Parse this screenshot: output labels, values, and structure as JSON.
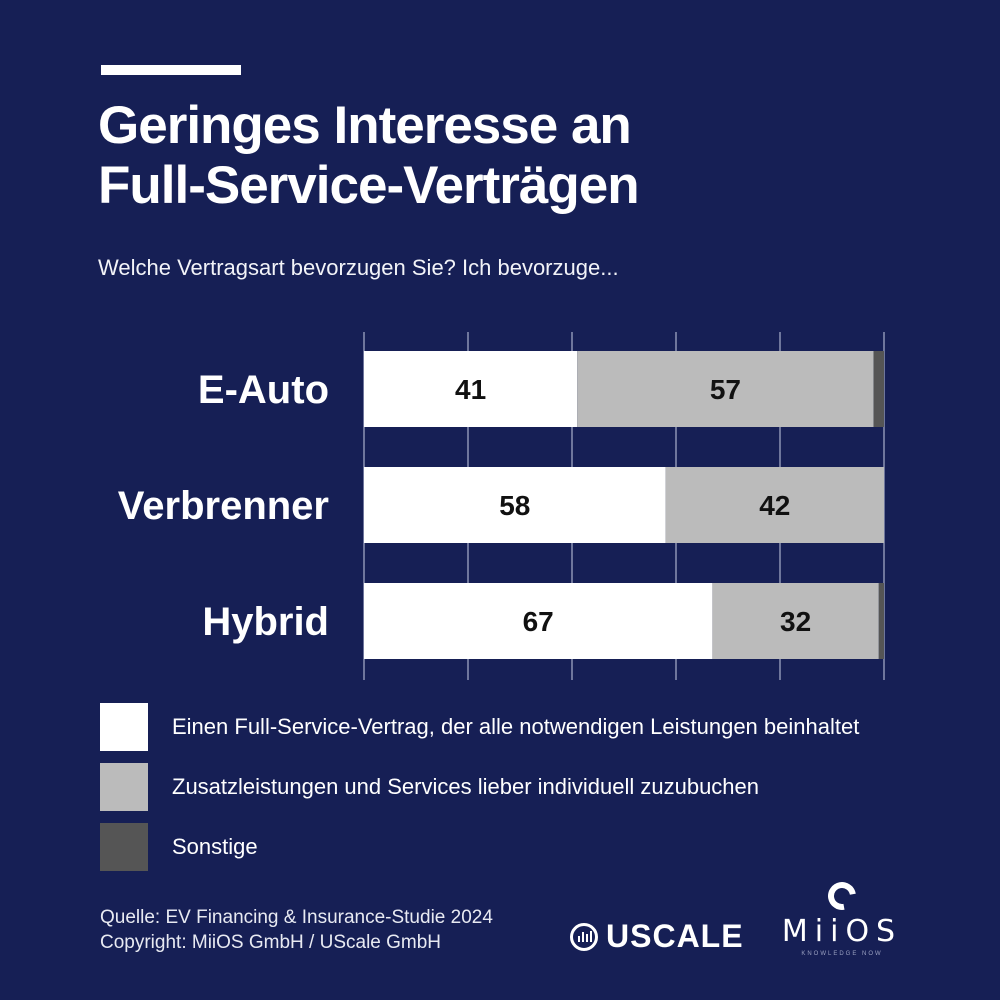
{
  "title_lines": [
    "Geringes Interesse an",
    "Full-Service-Verträgen"
  ],
  "subtitle": "Welche Vertragsart bevorzugen Sie? Ich bevorzuge...",
  "colors": {
    "background": "#161f55",
    "full_service": "#ffffff",
    "individual": "#bbbbbb",
    "other": "#555555"
  },
  "chart_data": {
    "type": "bar",
    "orientation": "horizontal",
    "stacked": true,
    "title": "Geringes Interesse an Full-Service-Verträgen",
    "categories": [
      "E-Auto",
      "Verbrenner",
      "Hybrid"
    ],
    "series": [
      {
        "name": "Einen Full-Service-Vertrag, der alle notwendigen Leistungen beinhaltet",
        "values": [
          41,
          58,
          67
        ]
      },
      {
        "name": "Zusatzleistungen und Services lieber individuell zuzubuchen",
        "values": [
          57,
          42,
          32
        ]
      },
      {
        "name": "Sonstige",
        "values": [
          2,
          0,
          1
        ]
      }
    ],
    "xlim": [
      0,
      100
    ],
    "grid": true,
    "xlabel": "",
    "ylabel": "",
    "unit": "%"
  },
  "legend": [
    {
      "label": "Einen Full-Service-Vertrag, der alle notwendigen Leistungen beinhaltet"
    },
    {
      "label": "Zusatzleistungen und Services lieber individuell zuzubuchen"
    },
    {
      "label": "Sonstige"
    }
  ],
  "source": {
    "line1": "Quelle: EV Financing & Insurance-Studie 2024",
    "line2": "Copyright: MiiOS GmbH / UScale GmbH"
  },
  "logos": {
    "uscale": "USCALE",
    "miios": "MiiOS",
    "miios_tagline": "KNOWLEDGE NOW"
  }
}
